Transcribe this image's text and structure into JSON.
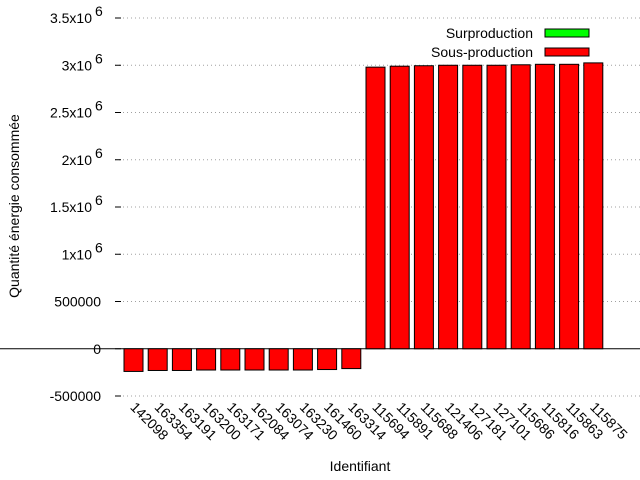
{
  "chart_data": {
    "type": "bar",
    "xlabel": "Identifiant",
    "ylabel": "Quantité énergie consommée",
    "ylim": [
      -500000,
      3500000
    ],
    "yticks": [
      {
        "value": 3500000,
        "mantissa": "3.5x10",
        "exp": "6"
      },
      {
        "value": 3000000,
        "mantissa": "3x10",
        "exp": "6"
      },
      {
        "value": 2500000,
        "mantissa": "2.5x10",
        "exp": "6"
      },
      {
        "value": 2000000,
        "mantissa": "2x10",
        "exp": "6"
      },
      {
        "value": 1500000,
        "mantissa": "1.5x10",
        "exp": "6"
      },
      {
        "value": 1000000,
        "mantissa": "1x10",
        "exp": "6"
      },
      {
        "value": 500000,
        "mantissa": "500000",
        "exp": ""
      },
      {
        "value": 0,
        "mantissa": "0",
        "exp": ""
      },
      {
        "value": -500000,
        "mantissa": "-500000",
        "exp": ""
      }
    ],
    "grid": true,
    "legend_position": "top-right",
    "categories": [
      "142098",
      "163354",
      "163191",
      "163200",
      "163171",
      "162084",
      "163074",
      "163230",
      "161460",
      "163314",
      "115694",
      "115891",
      "115688",
      "121406",
      "127181",
      "127101",
      "115686",
      "115816",
      "115863",
      "115875"
    ],
    "series": [
      {
        "name": "Surproduction",
        "color": "#00ff00",
        "values": [
          0,
          0,
          0,
          0,
          0,
          0,
          0,
          0,
          0,
          0,
          0,
          0,
          0,
          0,
          0,
          0,
          0,
          0,
          0,
          0
        ]
      },
      {
        "name": "Sous-production",
        "color": "#ff0000",
        "values": [
          -240000,
          -230000,
          -230000,
          -225000,
          -225000,
          -225000,
          -225000,
          -225000,
          -220000,
          -210000,
          2980000,
          2990000,
          2995000,
          3000000,
          3000000,
          3000000,
          3005000,
          3010000,
          3010000,
          3025000
        ]
      }
    ]
  }
}
